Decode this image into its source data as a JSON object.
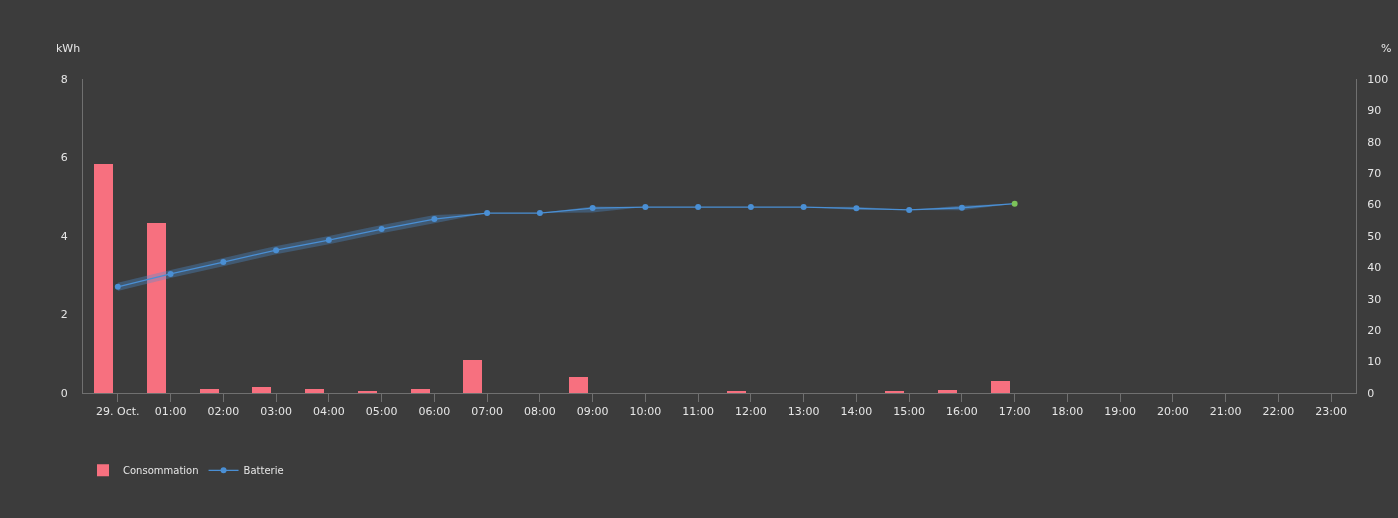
{
  "chart_data": {
    "type": "bar",
    "ylabel": "kWh",
    "y2label": "%",
    "xlim": [
      -0.66,
      23.47
    ],
    "xticks": [
      {
        "value": 0,
        "label": "29. Oct."
      },
      {
        "value": 1,
        "label": "01:00"
      },
      {
        "value": 2,
        "label": "02:00"
      },
      {
        "value": 3,
        "label": "03:00"
      },
      {
        "value": 4,
        "label": "04:00"
      },
      {
        "value": 5,
        "label": "05:00"
      },
      {
        "value": 6,
        "label": "06:00"
      },
      {
        "value": 7,
        "label": "07:00"
      },
      {
        "value": 8,
        "label": "08:00"
      },
      {
        "value": 9,
        "label": "09:00"
      },
      {
        "value": 10,
        "label": "10:00"
      },
      {
        "value": 11,
        "label": "11:00"
      },
      {
        "value": 12,
        "label": "12:00"
      },
      {
        "value": 13,
        "label": "13:00"
      },
      {
        "value": 14,
        "label": "14:00"
      },
      {
        "value": 15,
        "label": "15:00"
      },
      {
        "value": 16,
        "label": "16:00"
      },
      {
        "value": 17,
        "label": "17:00"
      },
      {
        "value": 18,
        "label": "18:00"
      },
      {
        "value": 19,
        "label": "19:00"
      },
      {
        "value": 20,
        "label": "20:00"
      },
      {
        "value": 21,
        "label": "21:00"
      },
      {
        "value": 22,
        "label": "22:00"
      },
      {
        "value": 23,
        "label": "23:00"
      }
    ],
    "ylim": [
      0,
      8
    ],
    "yticks": [
      0,
      2,
      4,
      6,
      8
    ],
    "y2lim": [
      0,
      100
    ],
    "y2ticks": [
      0,
      10,
      20,
      30,
      40,
      50,
      60,
      70,
      80,
      90,
      100
    ],
    "grid": false,
    "legend": "bottom left",
    "marker": "circle",
    "line_style": "solid",
    "series": [
      {
        "name": "Consommation",
        "color": "#f7707f",
        "x": [
          -0.27,
          0.73,
          1.73,
          2.73,
          3.73,
          4.73,
          5.73,
          6.73,
          7.73,
          8.73,
          9.73,
          10.73,
          11.73,
          12.73,
          13.73,
          14.73,
          15.73,
          16.73
        ],
        "values": [
          5.83,
          4.33,
          0.1,
          0.15,
          0.1,
          0.03,
          0.1,
          0.85,
          0,
          0.41,
          0,
          0,
          0.03,
          0,
          0,
          0.03,
          0.07,
          0.3
        ]
      },
      {
        "name": "Batterie",
        "type": "line",
        "axis": "y2",
        "color": "#4a8fd4",
        "colors": [
          "#4a8fd4",
          "#4a8fd4",
          "#4a8fd4",
          "#4a8fd4",
          "#4a8fd4",
          "#4a8fd4",
          "#4a8fd4",
          "#4a8fd4",
          "#4a8fd4",
          "#4a8fd4",
          "#4a8fd4",
          "#4a8fd4",
          "#4a8fd4",
          "#4a8fd4",
          "#4a8fd4",
          "#4a8fd4",
          "#4a8fd4",
          "#7cc35a"
        ],
        "x": [
          0,
          1,
          2,
          3,
          4,
          5,
          6,
          7,
          8,
          9,
          10,
          11,
          12,
          13,
          14,
          15,
          16,
          17
        ],
        "values": [
          33.8,
          37.9,
          41.7,
          45.5,
          48.7,
          52.2,
          55.4,
          57.3,
          57.3,
          58.9,
          59.2,
          59.2,
          59.2,
          59.2,
          58.8,
          58.3,
          59.0,
          60.3
        ],
        "lower": [
          32.5,
          36.6,
          40.4,
          44.2,
          47.4,
          50.9,
          54.1,
          57.3,
          57.3,
          57.5,
          59.2,
          59.2,
          59.2,
          59.2,
          58.3,
          58.3,
          58.2,
          60.3
        ],
        "upper": [
          35.1,
          39.2,
          43.0,
          46.8,
          50.0,
          53.5,
          56.7,
          57.3,
          57.3,
          59.4,
          59.2,
          59.2,
          59.2,
          59.2,
          59.3,
          58.3,
          59.7,
          60.3
        ]
      }
    ]
  }
}
